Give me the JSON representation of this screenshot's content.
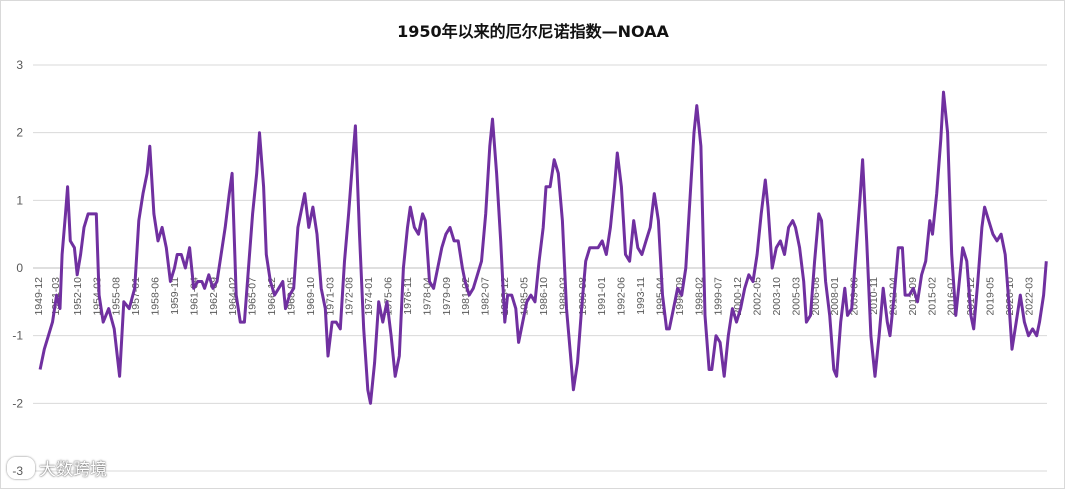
{
  "chart_data": {
    "type": "line",
    "title": "1950年以来的厄尔尼诺指数—NOAA",
    "xlabel": "",
    "ylabel": "",
    "ylim": [
      -3,
      3
    ],
    "yticks": [
      3,
      2,
      1,
      0,
      -1,
      -2,
      -3
    ],
    "grid": true,
    "line_color": "#7030A0",
    "x_tick_labels": [
      "1949-12",
      "1951-03",
      "1952-10",
      "1954-03",
      "1955-08",
      "1957-01",
      "1958-06",
      "1959-11",
      "1961-04",
      "1962-09",
      "1964-02",
      "1965-07",
      "1966-12",
      "1968-05",
      "1969-10",
      "1971-03",
      "1972-08",
      "1974-01",
      "1975-06",
      "1976-11",
      "1978-04",
      "1979-09",
      "1981-02",
      "1982-07",
      "1983-12",
      "1985-05",
      "1986-10",
      "1988-03",
      "1989-08",
      "1991-01",
      "1992-06",
      "1993-11",
      "1995-04",
      "1996-09",
      "1998-02",
      "1999-07",
      "2000-12",
      "2002-05",
      "2003-10",
      "2005-03",
      "2006-08",
      "2008-01",
      "2009-06",
      "2010-11",
      "2012-04",
      "2013-09",
      "2015-02",
      "2016-07",
      "2017-12",
      "2019-05",
      "2020-10",
      "2022-03"
    ],
    "series": [
      {
        "points": [
          [
            1950.0,
            -1.5
          ],
          [
            1950.3,
            -1.2
          ],
          [
            1950.6,
            -1.0
          ],
          [
            1950.9,
            -0.8
          ],
          [
            1951.2,
            -0.4
          ],
          [
            1951.45,
            -0.6
          ],
          [
            1951.6,
            0.2
          ],
          [
            1951.85,
            0.8
          ],
          [
            1952.0,
            1.2
          ],
          [
            1952.2,
            0.4
          ],
          [
            1952.5,
            0.3
          ],
          [
            1952.7,
            -0.1
          ],
          [
            1952.95,
            0.2
          ],
          [
            1953.2,
            0.6
          ],
          [
            1953.5,
            0.8
          ],
          [
            1953.8,
            0.8
          ],
          [
            1954.1,
            0.8
          ],
          [
            1954.3,
            -0.4
          ],
          [
            1954.6,
            -0.8
          ],
          [
            1955.0,
            -0.6
          ],
          [
            1955.4,
            -0.9
          ],
          [
            1955.8,
            -1.6
          ],
          [
            1956.1,
            -0.5
          ],
          [
            1956.5,
            -0.6
          ],
          [
            1956.9,
            -0.3
          ],
          [
            1957.2,
            0.7
          ],
          [
            1957.5,
            1.1
          ],
          [
            1957.8,
            1.4
          ],
          [
            1958.0,
            1.8
          ],
          [
            1958.3,
            0.8
          ],
          [
            1958.6,
            0.4
          ],
          [
            1958.9,
            0.6
          ],
          [
            1959.2,
            0.3
          ],
          [
            1959.5,
            -0.2
          ],
          [
            1959.8,
            0.0
          ],
          [
            1960.0,
            0.2
          ],
          [
            1960.3,
            0.2
          ],
          [
            1960.6,
            0.0
          ],
          [
            1960.9,
            0.3
          ],
          [
            1961.2,
            -0.3
          ],
          [
            1961.5,
            -0.2
          ],
          [
            1961.8,
            -0.2
          ],
          [
            1962.0,
            -0.3
          ],
          [
            1962.3,
            -0.1
          ],
          [
            1962.6,
            -0.3
          ],
          [
            1962.9,
            -0.2
          ],
          [
            1963.2,
            0.2
          ],
          [
            1963.5,
            0.6
          ],
          [
            1963.8,
            1.1
          ],
          [
            1964.0,
            1.4
          ],
          [
            1964.3,
            -0.4
          ],
          [
            1964.6,
            -0.8
          ],
          [
            1964.9,
            -0.8
          ],
          [
            1965.2,
            0.0
          ],
          [
            1965.5,
            0.8
          ],
          [
            1965.8,
            1.4
          ],
          [
            1966.0,
            2.0
          ],
          [
            1966.3,
            1.2
          ],
          [
            1966.5,
            0.2
          ],
          [
            1966.8,
            -0.2
          ],
          [
            1967.1,
            -0.4
          ],
          [
            1967.4,
            -0.3
          ],
          [
            1967.7,
            -0.2
          ],
          [
            1967.9,
            -0.6
          ],
          [
            1968.2,
            -0.4
          ],
          [
            1968.5,
            -0.3
          ],
          [
            1968.8,
            0.6
          ],
          [
            1969.1,
            0.9
          ],
          [
            1969.3,
            1.1
          ],
          [
            1969.6,
            0.6
          ],
          [
            1969.9,
            0.9
          ],
          [
            1970.2,
            0.5
          ],
          [
            1970.5,
            -0.3
          ],
          [
            1970.8,
            -0.6
          ],
          [
            1971.0,
            -1.3
          ],
          [
            1971.3,
            -0.8
          ],
          [
            1971.6,
            -0.8
          ],
          [
            1971.9,
            -0.9
          ],
          [
            1972.2,
            0.1
          ],
          [
            1972.5,
            0.8
          ],
          [
            1972.8,
            1.6
          ],
          [
            1973.0,
            2.1
          ],
          [
            1973.3,
            0.5
          ],
          [
            1973.6,
            -0.9
          ],
          [
            1973.9,
            -1.8
          ],
          [
            1974.1,
            -2.0
          ],
          [
            1974.4,
            -1.4
          ],
          [
            1974.7,
            -0.5
          ],
          [
            1975.0,
            -0.8
          ],
          [
            1975.3,
            -0.5
          ],
          [
            1975.6,
            -1.0
          ],
          [
            1975.9,
            -1.6
          ],
          [
            1976.2,
            -1.3
          ],
          [
            1976.5,
            0.0
          ],
          [
            1976.8,
            0.6
          ],
          [
            1977.0,
            0.9
          ],
          [
            1977.3,
            0.6
          ],
          [
            1977.6,
            0.5
          ],
          [
            1977.9,
            0.8
          ],
          [
            1978.1,
            0.7
          ],
          [
            1978.4,
            -0.2
          ],
          [
            1978.7,
            -0.3
          ],
          [
            1979.0,
            0.0
          ],
          [
            1979.3,
            0.3
          ],
          [
            1979.6,
            0.5
          ],
          [
            1979.9,
            0.6
          ],
          [
            1980.2,
            0.4
          ],
          [
            1980.5,
            0.4
          ],
          [
            1980.8,
            0.0
          ],
          [
            1981.0,
            -0.2
          ],
          [
            1981.3,
            -0.4
          ],
          [
            1981.6,
            -0.3
          ],
          [
            1981.9,
            -0.1
          ],
          [
            1982.2,
            0.1
          ],
          [
            1982.5,
            0.8
          ],
          [
            1982.8,
            1.8
          ],
          [
            1983.0,
            2.2
          ],
          [
            1983.3,
            1.4
          ],
          [
            1983.6,
            0.4
          ],
          [
            1983.9,
            -0.8
          ],
          [
            1984.1,
            -0.4
          ],
          [
            1984.4,
            -0.4
          ],
          [
            1984.7,
            -0.6
          ],
          [
            1984.9,
            -1.1
          ],
          [
            1985.2,
            -0.8
          ],
          [
            1985.5,
            -0.5
          ],
          [
            1985.8,
            -0.4
          ],
          [
            1986.1,
            -0.5
          ],
          [
            1986.4,
            0.1
          ],
          [
            1986.7,
            0.6
          ],
          [
            1986.9,
            1.2
          ],
          [
            1987.2,
            1.2
          ],
          [
            1987.5,
            1.6
          ],
          [
            1987.8,
            1.4
          ],
          [
            1988.1,
            0.7
          ],
          [
            1988.4,
            -0.6
          ],
          [
            1988.7,
            -1.3
          ],
          [
            1988.9,
            -1.8
          ],
          [
            1989.2,
            -1.4
          ],
          [
            1989.5,
            -0.6
          ],
          [
            1989.8,
            0.1
          ],
          [
            1990.1,
            0.3
          ],
          [
            1990.4,
            0.3
          ],
          [
            1990.7,
            0.3
          ],
          [
            1991.0,
            0.4
          ],
          [
            1991.3,
            0.2
          ],
          [
            1991.6,
            0.6
          ],
          [
            1991.9,
            1.2
          ],
          [
            1992.1,
            1.7
          ],
          [
            1992.4,
            1.2
          ],
          [
            1992.7,
            0.2
          ],
          [
            1993.0,
            0.1
          ],
          [
            1993.3,
            0.7
          ],
          [
            1993.6,
            0.3
          ],
          [
            1993.9,
            0.2
          ],
          [
            1994.2,
            0.4
          ],
          [
            1994.5,
            0.6
          ],
          [
            1994.8,
            1.1
          ],
          [
            1995.1,
            0.7
          ],
          [
            1995.4,
            -0.4
          ],
          [
            1995.7,
            -0.9
          ],
          [
            1995.9,
            -0.9
          ],
          [
            1996.2,
            -0.6
          ],
          [
            1996.5,
            -0.3
          ],
          [
            1996.8,
            -0.4
          ],
          [
            1997.1,
            0.0
          ],
          [
            1997.4,
            1.0
          ],
          [
            1997.7,
            2.0
          ],
          [
            1997.9,
            2.4
          ],
          [
            1998.2,
            1.8
          ],
          [
            1998.5,
            -0.7
          ],
          [
            1998.8,
            -1.5
          ],
          [
            1999.0,
            -1.5
          ],
          [
            1999.3,
            -1.0
          ],
          [
            1999.6,
            -1.1
          ],
          [
            1999.9,
            -1.6
          ],
          [
            2000.2,
            -1.0
          ],
          [
            2000.5,
            -0.6
          ],
          [
            2000.8,
            -0.8
          ],
          [
            2001.1,
            -0.6
          ],
          [
            2001.4,
            -0.3
          ],
          [
            2001.7,
            -0.1
          ],
          [
            2002.0,
            -0.2
          ],
          [
            2002.3,
            0.2
          ],
          [
            2002.6,
            0.8
          ],
          [
            2002.9,
            1.3
          ],
          [
            2003.1,
            0.9
          ],
          [
            2003.4,
            0.0
          ],
          [
            2003.7,
            0.3
          ],
          [
            2004.0,
            0.4
          ],
          [
            2004.3,
            0.2
          ],
          [
            2004.6,
            0.6
          ],
          [
            2004.9,
            0.7
          ],
          [
            2005.1,
            0.6
          ],
          [
            2005.4,
            0.3
          ],
          [
            2005.7,
            -0.2
          ],
          [
            2005.9,
            -0.8
          ],
          [
            2006.2,
            -0.7
          ],
          [
            2006.5,
            0.1
          ],
          [
            2006.8,
            0.8
          ],
          [
            2007.0,
            0.7
          ],
          [
            2007.3,
            -0.2
          ],
          [
            2007.6,
            -0.7
          ],
          [
            2007.9,
            -1.5
          ],
          [
            2008.1,
            -1.6
          ],
          [
            2008.4,
            -0.8
          ],
          [
            2008.7,
            -0.3
          ],
          [
            2008.9,
            -0.7
          ],
          [
            2009.2,
            -0.6
          ],
          [
            2009.5,
            0.2
          ],
          [
            2009.8,
            1.0
          ],
          [
            2010.0,
            1.6
          ],
          [
            2010.3,
            0.4
          ],
          [
            2010.6,
            -1.0
          ],
          [
            2010.9,
            -1.6
          ],
          [
            2011.2,
            -1.0
          ],
          [
            2011.5,
            -0.3
          ],
          [
            2011.8,
            -0.8
          ],
          [
            2012.0,
            -1.0
          ],
          [
            2012.3,
            -0.4
          ],
          [
            2012.6,
            0.3
          ],
          [
            2012.9,
            0.3
          ],
          [
            2013.1,
            -0.4
          ],
          [
            2013.4,
            -0.4
          ],
          [
            2013.7,
            -0.3
          ],
          [
            2014.0,
            -0.5
          ],
          [
            2014.3,
            -0.1
          ],
          [
            2014.6,
            0.1
          ],
          [
            2014.9,
            0.7
          ],
          [
            2015.1,
            0.5
          ],
          [
            2015.4,
            1.1
          ],
          [
            2015.7,
            1.9
          ],
          [
            2015.9,
            2.6
          ],
          [
            2016.2,
            2.0
          ],
          [
            2016.5,
            0.2
          ],
          [
            2016.8,
            -0.7
          ],
          [
            2017.0,
            -0.3
          ],
          [
            2017.3,
            0.3
          ],
          [
            2017.6,
            0.1
          ],
          [
            2017.9,
            -0.7
          ],
          [
            2018.1,
            -0.9
          ],
          [
            2018.4,
            -0.2
          ],
          [
            2018.7,
            0.6
          ],
          [
            2018.9,
            0.9
          ],
          [
            2019.2,
            0.7
          ],
          [
            2019.5,
            0.5
          ],
          [
            2019.8,
            0.4
          ],
          [
            2020.1,
            0.5
          ],
          [
            2020.4,
            0.2
          ],
          [
            2020.7,
            -0.6
          ],
          [
            2020.9,
            -1.2
          ],
          [
            2021.2,
            -0.8
          ],
          [
            2021.5,
            -0.4
          ],
          [
            2021.8,
            -0.8
          ],
          [
            2022.1,
            -1.0
          ],
          [
            2022.4,
            -0.9
          ],
          [
            2022.7,
            -1.0
          ],
          [
            2022.9,
            -0.8
          ],
          [
            2023.2,
            -0.4
          ],
          [
            2023.4,
            0.1
          ]
        ]
      }
    ]
  },
  "watermark": {
    "text": "大数跨境"
  }
}
